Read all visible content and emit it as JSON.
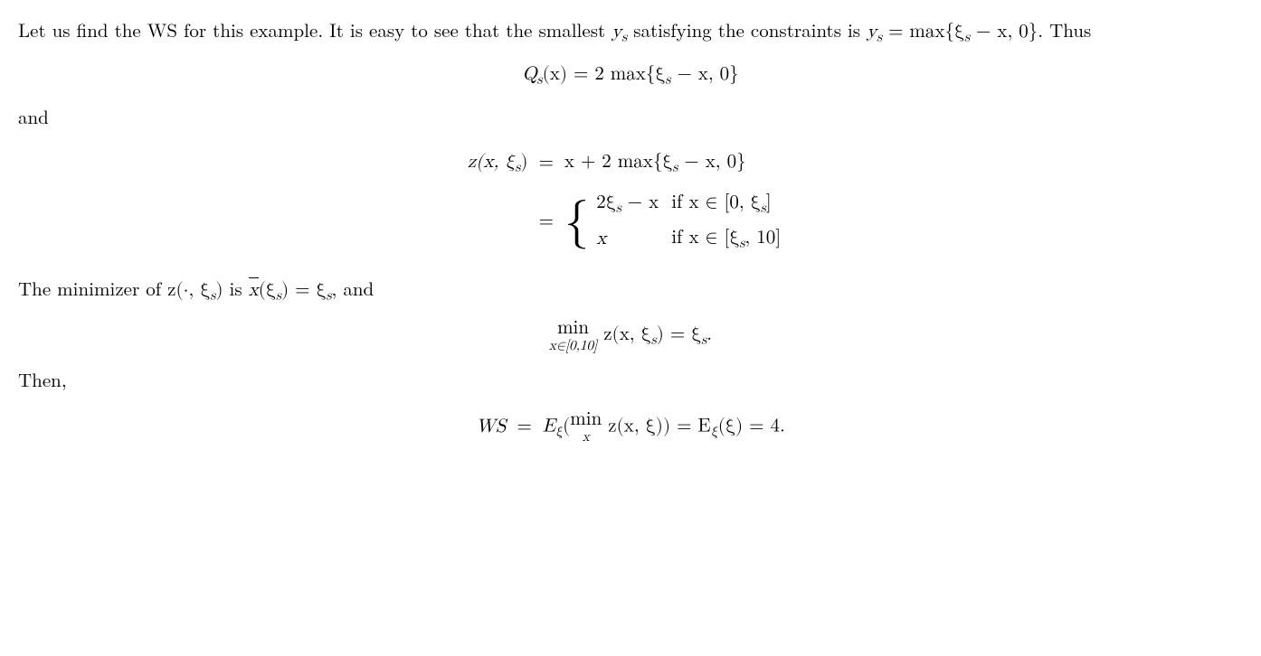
{
  "para1_a": "Let us find the WS for this example.  It is easy to see that the smallest ",
  "para1_b": " satisfying the constraints is ",
  "para1_c": ".  Thus",
  "ys": "y",
  "ys_sub": "s",
  "ys_eq": " = max{ξ",
  "ys_eq_sub": "s",
  "ys_eq_tail": " − x, 0}",
  "eq1_lhs_Q": "Q",
  "eq1_lhs_sub": "s",
  "eq1_lhs_arg": "(x) = 2 max{ξ",
  "eq1_lhs_sub2": "s",
  "eq1_tail": " − x, 0}",
  "and": "and",
  "eq2_lhs": "z(x, ξ",
  "eq2_lhs_sub": "s",
  "eq2_lhs_close": ")",
  "eq2_eq": "=",
  "eq2_rhs1_a": "x + 2 max{ξ",
  "eq2_rhs1_sub": "s",
  "eq2_rhs1_b": " − x, 0}",
  "case1_expr_a": "2ξ",
  "case1_expr_sub": "s",
  "case1_expr_b": " − x",
  "case1_cond_a": "if x ∈ [0, ξ",
  "case1_cond_sub": "s",
  "case1_cond_b": "]",
  "case2_expr": "x",
  "case2_cond_a": "if x ∈ [ξ",
  "case2_cond_sub": "s",
  "case2_cond_b": ", 10]",
  "para2_a": "The minimizer of ",
  "para2_z": "z(·, ξ",
  "para2_z_sub": "s",
  "para2_z_close": ")",
  "para2_b": " is ",
  "para2_xbar": "x",
  "para2_xbar_arg_open": "(ξ",
  "para2_xbar_sub": "s",
  "para2_xbar_arg_close": ") = ξ",
  "para2_xbar_sub2": "s",
  "para2_c": ", and",
  "eq3_min_top": "min",
  "eq3_min_bot": "x∈[0,10]",
  "eq3_body_a": " z(x, ξ",
  "eq3_body_sub": "s",
  "eq3_body_b": ") = ξ",
  "eq3_body_sub2": "s",
  "eq3_body_c": ".",
  "then": "Then,",
  "eq4_lhs": "WS",
  "eq4_eq": "=",
  "eq4_rhs_a": "E",
  "eq4_rhs_sub1": "ξ",
  "eq4_rhs_b": "(",
  "eq4_min_top": "min",
  "eq4_min_bot": "x",
  "eq4_rhs_c": " z(x, ξ)) = E",
  "eq4_rhs_sub2": "ξ",
  "eq4_rhs_d": "(ξ) = 4."
}
